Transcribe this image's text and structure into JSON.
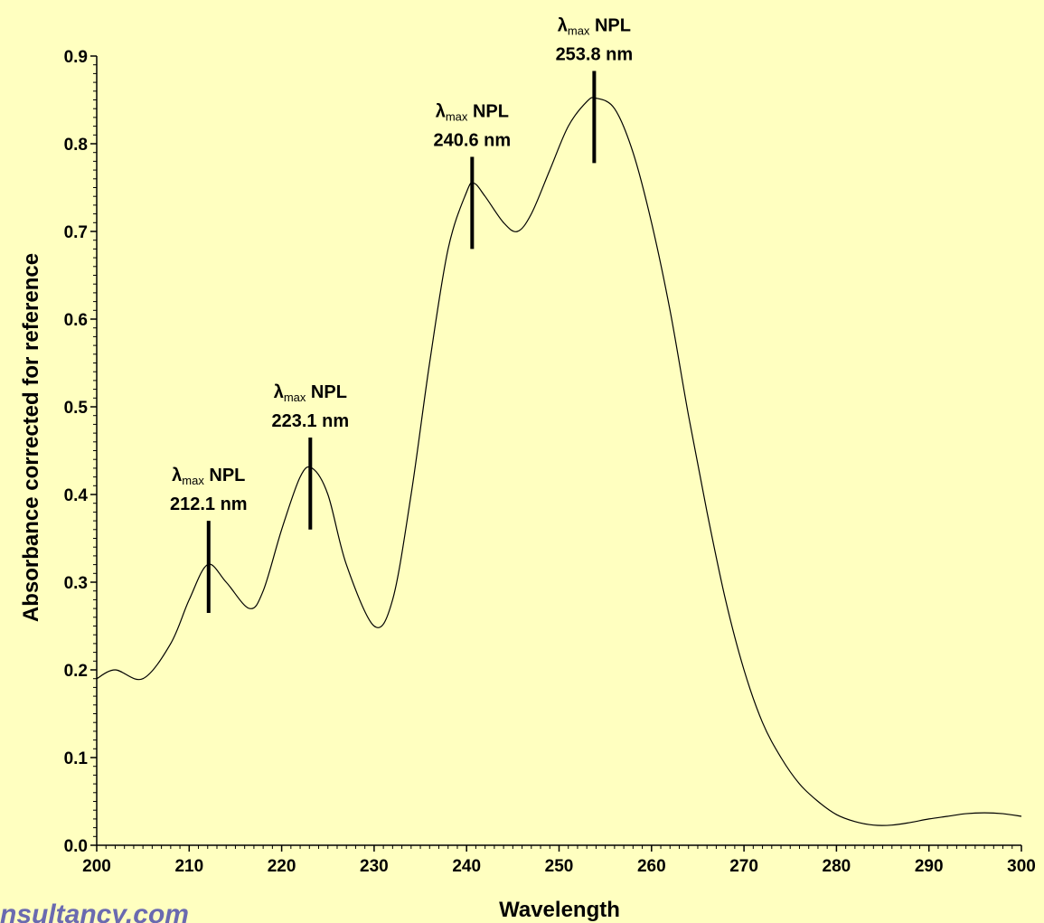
{
  "chart_data": {
    "type": "line",
    "xlabel": "Wavelength",
    "ylabel": "Absorbance corrected for reference",
    "xlim": [
      200,
      300
    ],
    "ylim": [
      0.0,
      0.9
    ],
    "x_ticks": [
      "200",
      "210",
      "220",
      "230",
      "240",
      "250",
      "260",
      "270",
      "280",
      "290",
      "300"
    ],
    "y_ticks": [
      "0.0",
      "0.1",
      "0.2",
      "0.3",
      "0.4",
      "0.5",
      "0.6",
      "0.7",
      "0.8",
      "0.9"
    ],
    "grid": false,
    "line_color": "#000000",
    "series": [
      {
        "x": [
          200,
          202,
          205,
          208,
          210,
          212,
          214,
          216.5,
          218,
          220,
          222,
          223.3,
          225,
          227,
          230,
          232,
          234,
          236,
          238,
          240,
          240.8,
          242,
          244,
          245.5,
          247,
          249,
          251,
          253,
          254,
          256,
          258,
          260,
          262,
          264,
          266,
          268,
          270,
          272,
          274,
          276,
          278,
          280,
          282,
          284,
          286,
          288,
          290,
          292,
          294,
          296,
          298,
          300
        ],
        "y": [
          0.19,
          0.2,
          0.19,
          0.23,
          0.28,
          0.32,
          0.3,
          0.27,
          0.29,
          0.36,
          0.42,
          0.43,
          0.4,
          0.32,
          0.25,
          0.28,
          0.4,
          0.55,
          0.68,
          0.745,
          0.755,
          0.74,
          0.71,
          0.7,
          0.72,
          0.77,
          0.82,
          0.848,
          0.852,
          0.84,
          0.79,
          0.71,
          0.61,
          0.49,
          0.38,
          0.28,
          0.2,
          0.14,
          0.1,
          0.07,
          0.05,
          0.035,
          0.027,
          0.023,
          0.023,
          0.026,
          0.03,
          0.033,
          0.036,
          0.037,
          0.036,
          0.033
        ]
      }
    ],
    "annotations": [
      {
        "x": 212.1,
        "y_bottom": 0.265,
        "y_top": 0.37,
        "label_sub": "max",
        "label_sym": "λ",
        "label_name": "NPL",
        "value": "212.1 nm"
      },
      {
        "x": 223.1,
        "y_bottom": 0.36,
        "y_top": 0.465,
        "label_sub": "max",
        "label_sym": "λ",
        "label_name": "NPL",
        "value": "223.1 nm"
      },
      {
        "x": 240.6,
        "y_bottom": 0.68,
        "y_top": 0.785,
        "label_sub": "max",
        "label_sym": "λ",
        "label_name": "NPL",
        "value": "240.6 nm"
      },
      {
        "x": 253.8,
        "y_bottom": 0.778,
        "y_top": 0.883,
        "label_sub": "max",
        "label_sym": "λ",
        "label_name": "NPL",
        "value": "253.8 nm"
      }
    ]
  },
  "watermark": "nsultancy.com",
  "colors": {
    "background": "#FFFFC0",
    "watermark": "#6A6AB0"
  }
}
